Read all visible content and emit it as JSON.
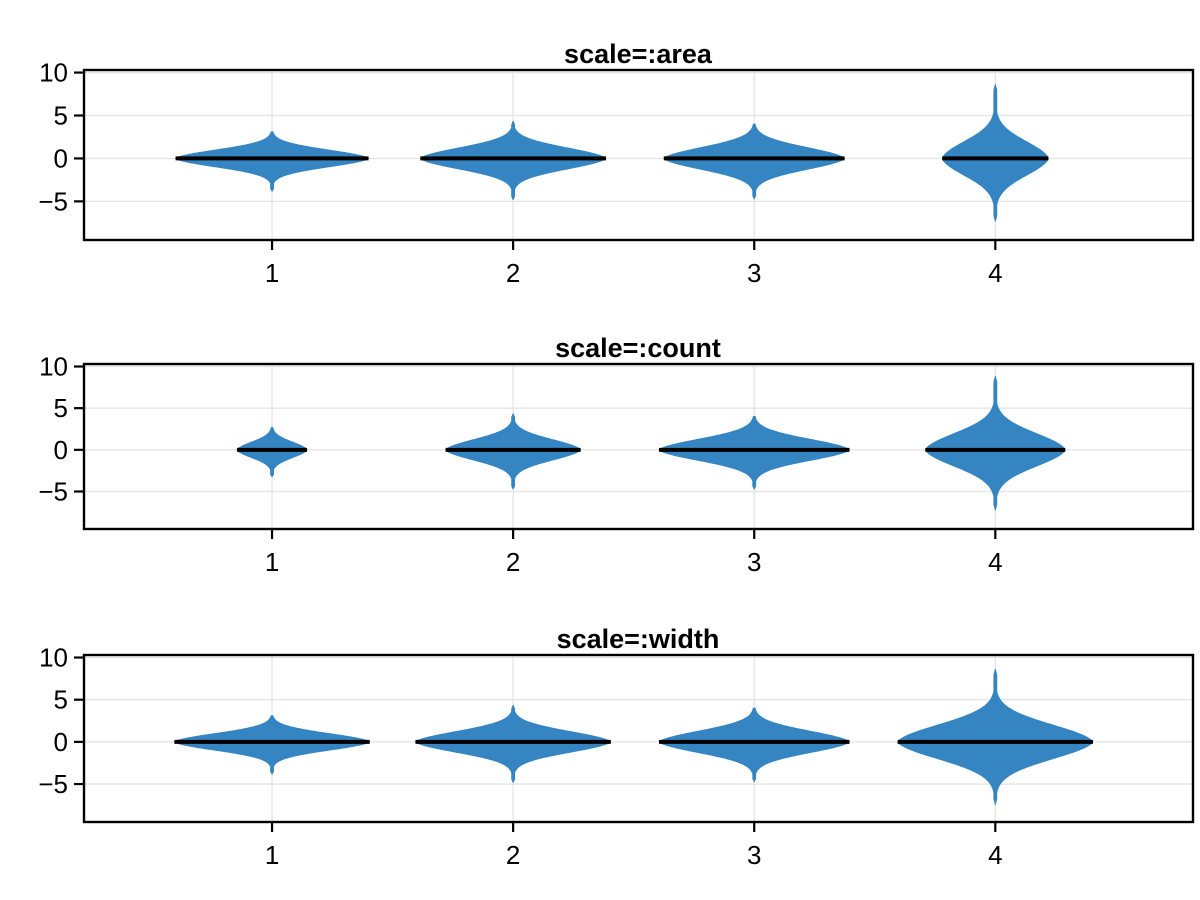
{
  "figure": {
    "background": "#ffffff"
  },
  "style": {
    "violin_fill": "#3585c3",
    "median_color": "#000000",
    "grid_color": "#e4e4e4",
    "frame_color": "#000000",
    "tick_color": "#000000",
    "text_color": "#000000"
  },
  "chart_data": [
    {
      "type": "violin",
      "title": "scale=:area",
      "x_categories": [
        "1",
        "2",
        "3",
        "4"
      ],
      "x_positions": [
        1,
        2,
        3,
        4
      ],
      "xlim": [
        0.22,
        4.82
      ],
      "ylim": [
        -9.5,
        10.3
      ],
      "yticks": [
        10,
        5,
        0,
        -5
      ],
      "ytick_labels": [
        "10",
        "5",
        "0",
        "−5"
      ],
      "grid": true,
      "median_values": [
        0,
        0,
        0,
        0
      ],
      "violins": [
        {
          "category": "1",
          "center": 1,
          "median": 0,
          "max_halfwidth": 0.4,
          "core_sigma": 1.0,
          "tail_scale": 0.75,
          "top": 3.1,
          "bottom": -3.8
        },
        {
          "category": "2",
          "center": 2,
          "median": 0,
          "max_halfwidth": 0.385,
          "core_sigma": 1.25,
          "tail_scale": 0.9,
          "top": 4.3,
          "bottom": -4.8
        },
        {
          "category": "3",
          "center": 3,
          "median": 0,
          "max_halfwidth": 0.375,
          "core_sigma": 1.3,
          "tail_scale": 0.92,
          "top": 4.0,
          "bottom": -4.7
        },
        {
          "category": "4",
          "center": 4,
          "median": 0,
          "max_halfwidth": 0.22,
          "core_sigma": 2.0,
          "tail_scale": 1.55,
          "top": 8.6,
          "bottom": -7.3
        }
      ]
    },
    {
      "type": "violin",
      "title": "scale=:count",
      "x_categories": [
        "1",
        "2",
        "3",
        "4"
      ],
      "x_positions": [
        1,
        2,
        3,
        4
      ],
      "xlim": [
        0.22,
        4.82
      ],
      "ylim": [
        -9.5,
        10.3
      ],
      "yticks": [
        10,
        5,
        0,
        -5
      ],
      "ytick_labels": [
        "10",
        "5",
        "0",
        "−5"
      ],
      "grid": true,
      "median_values": [
        0,
        0,
        0,
        0
      ],
      "violins": [
        {
          "category": "1",
          "center": 1,
          "median": 0,
          "max_halfwidth": 0.145,
          "core_sigma": 0.95,
          "tail_scale": 0.7,
          "top": 2.7,
          "bottom": -3.2
        },
        {
          "category": "2",
          "center": 2,
          "median": 0,
          "max_halfwidth": 0.28,
          "core_sigma": 1.25,
          "tail_scale": 0.9,
          "top": 4.3,
          "bottom": -4.7
        },
        {
          "category": "3",
          "center": 3,
          "median": 0,
          "max_halfwidth": 0.395,
          "core_sigma": 1.3,
          "tail_scale": 0.92,
          "top": 4.0,
          "bottom": -4.7
        },
        {
          "category": "4",
          "center": 4,
          "median": 0,
          "max_halfwidth": 0.29,
          "core_sigma": 2.0,
          "tail_scale": 1.55,
          "top": 8.8,
          "bottom": -7.2
        }
      ]
    },
    {
      "type": "violin",
      "title": "scale=:width",
      "x_categories": [
        "1",
        "2",
        "3",
        "4"
      ],
      "x_positions": [
        1,
        2,
        3,
        4
      ],
      "xlim": [
        0.22,
        4.82
      ],
      "ylim": [
        -9.5,
        10.3
      ],
      "yticks": [
        10,
        5,
        0,
        -5
      ],
      "ytick_labels": [
        "10",
        "5",
        "0",
        "−5"
      ],
      "grid": true,
      "median_values": [
        0,
        0,
        0,
        0
      ],
      "violins": [
        {
          "category": "1",
          "center": 1,
          "median": 0,
          "max_halfwidth": 0.405,
          "core_sigma": 1.0,
          "tail_scale": 0.75,
          "top": 3.1,
          "bottom": -3.8
        },
        {
          "category": "2",
          "center": 2,
          "median": 0,
          "max_halfwidth": 0.405,
          "core_sigma": 1.25,
          "tail_scale": 0.9,
          "top": 4.3,
          "bottom": -4.8
        },
        {
          "category": "3",
          "center": 3,
          "median": 0,
          "max_halfwidth": 0.395,
          "core_sigma": 1.3,
          "tail_scale": 0.92,
          "top": 4.0,
          "bottom": -4.7
        },
        {
          "category": "4",
          "center": 4,
          "median": 0,
          "max_halfwidth": 0.405,
          "core_sigma": 2.05,
          "tail_scale": 1.55,
          "top": 8.6,
          "bottom": -7.4
        }
      ]
    }
  ]
}
